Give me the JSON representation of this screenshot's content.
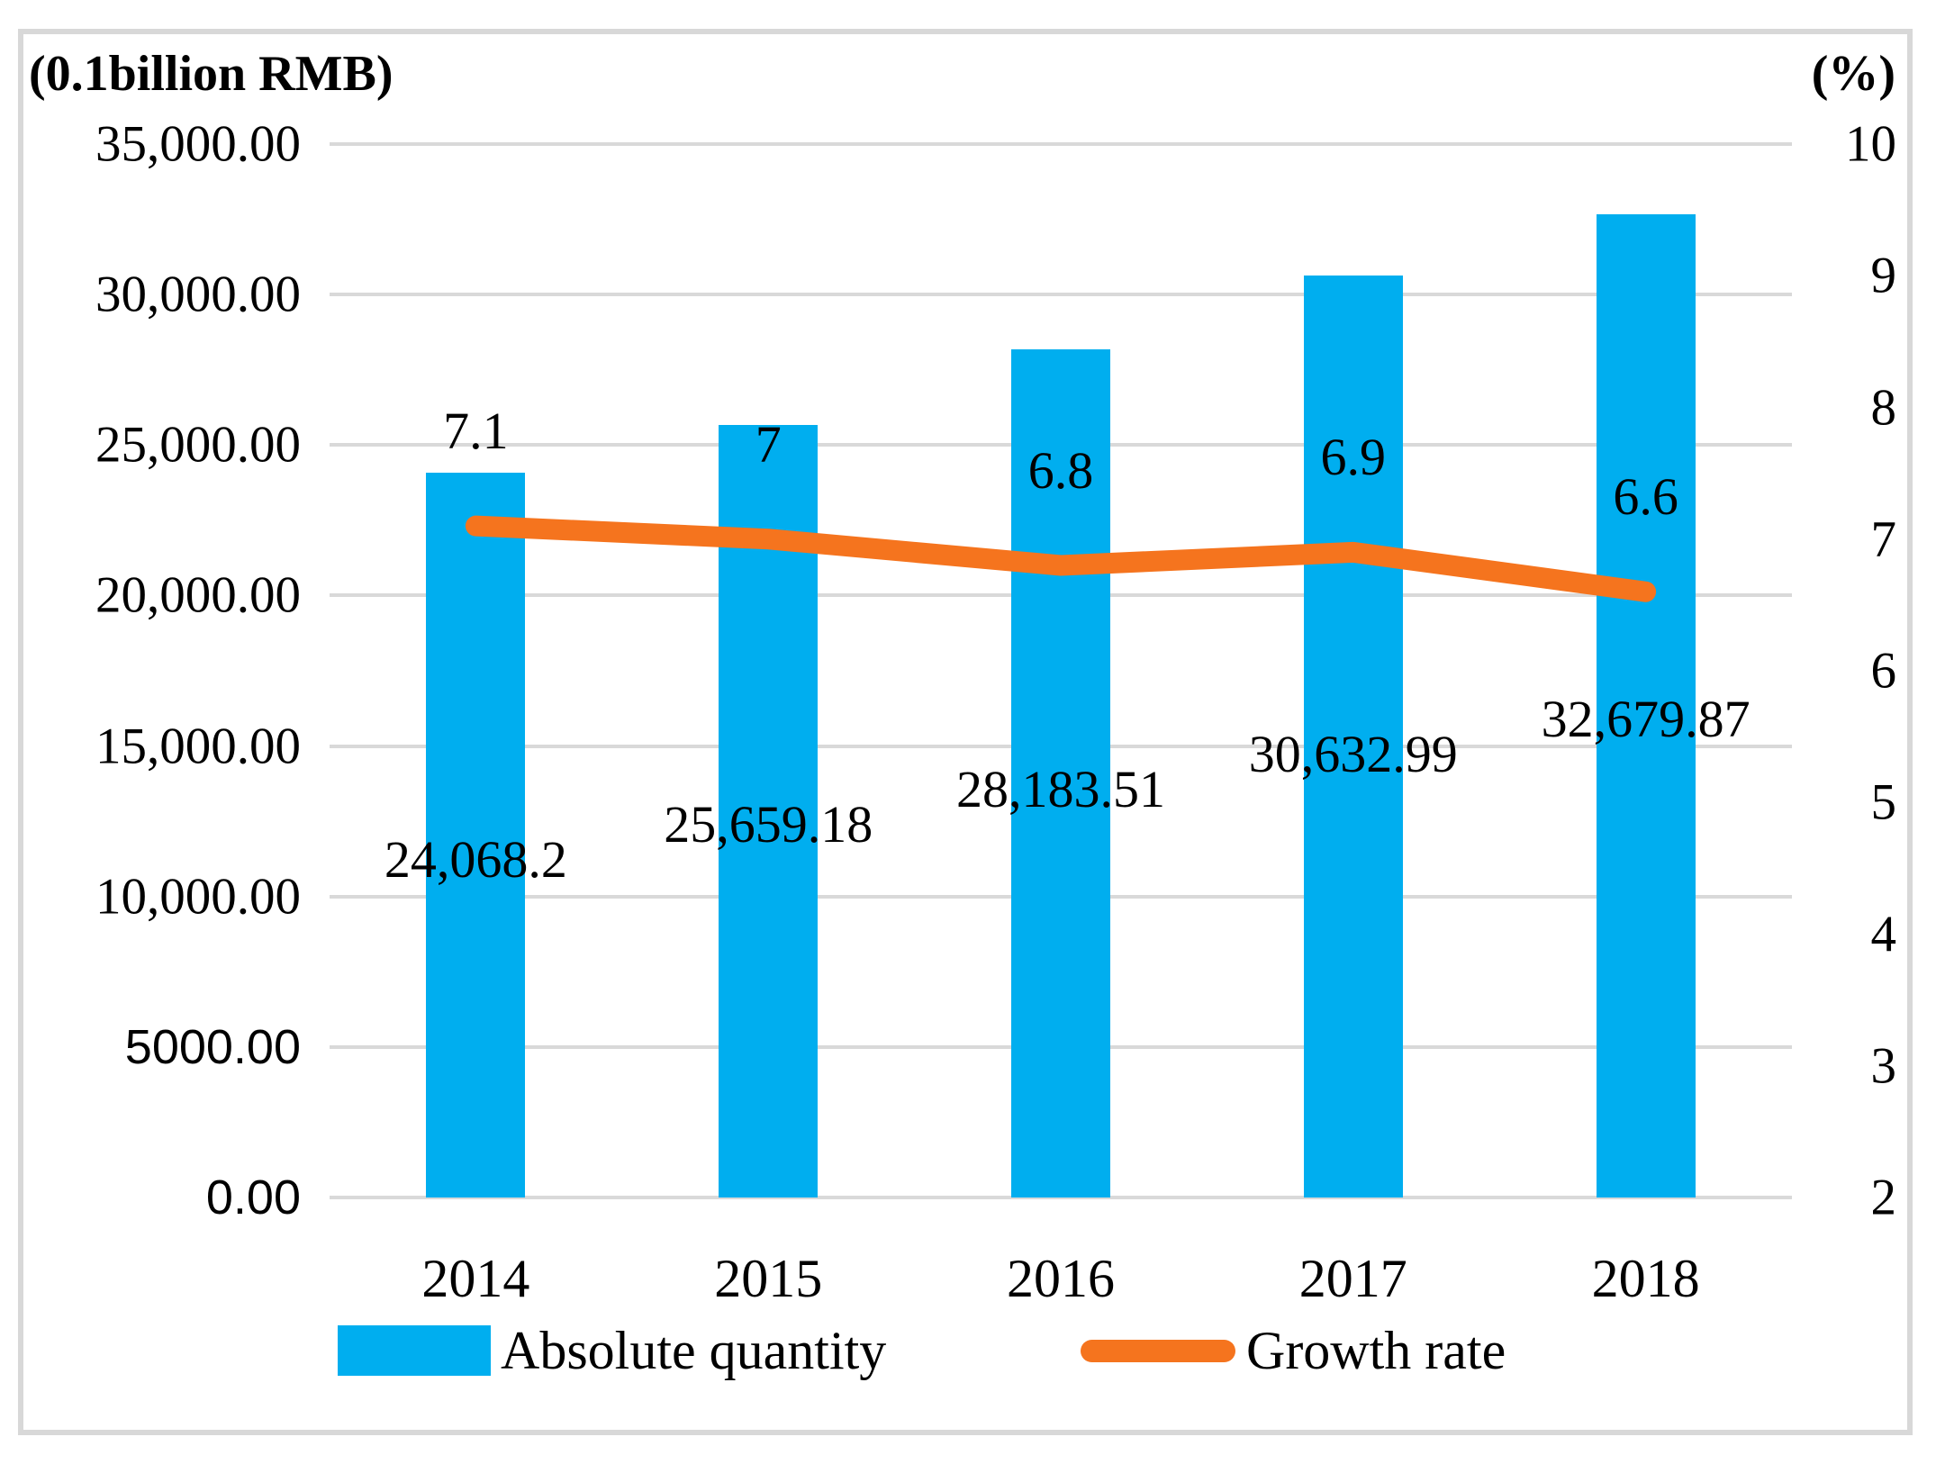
{
  "chart_data": {
    "type": "bar",
    "combo": "bar+line",
    "categories": [
      "2014",
      "2015",
      "2016",
      "2017",
      "2018"
    ],
    "series": [
      {
        "name": "Absolute quantity",
        "type": "bar",
        "axis": "left",
        "color": "#00AEEF",
        "values": [
          24068.2,
          25659.18,
          28183.51,
          30632.99,
          32679.87
        ],
        "labels": [
          "24,068.2",
          "25,659.18",
          "28,183.51",
          "30,632.99",
          "32,679.87"
        ]
      },
      {
        "name": "Growth rate",
        "type": "line",
        "axis": "right",
        "color": "#F5741E",
        "values": [
          7.1,
          7,
          6.8,
          6.9,
          6.6
        ],
        "labels": [
          "7.1",
          "7",
          "6.8",
          "6.9",
          "6.6"
        ]
      }
    ],
    "left_axis": {
      "title": "(0.1billion RMB)",
      "min": 0,
      "max": 35000,
      "tick_step": 5000,
      "tick_labels": [
        "35,000.00",
        "30,000.00",
        "25,000.00",
        "20,000.00",
        "15,000.00",
        "10,000.00",
        "5000.00",
        "0.00"
      ]
    },
    "right_axis": {
      "title": "(%)",
      "min": 2,
      "max": 10,
      "tick_step": 1,
      "tick_labels": [
        "10",
        "9",
        "8",
        "7",
        "6",
        "5",
        "4",
        "3",
        "2"
      ]
    },
    "grid": true,
    "legend_position": "bottom",
    "colors": {
      "bar": "#00AEEF",
      "line": "#F5741E",
      "gridline": "#d9d9d9",
      "frame_border": "#d8d8d8",
      "text": "#000000"
    }
  }
}
